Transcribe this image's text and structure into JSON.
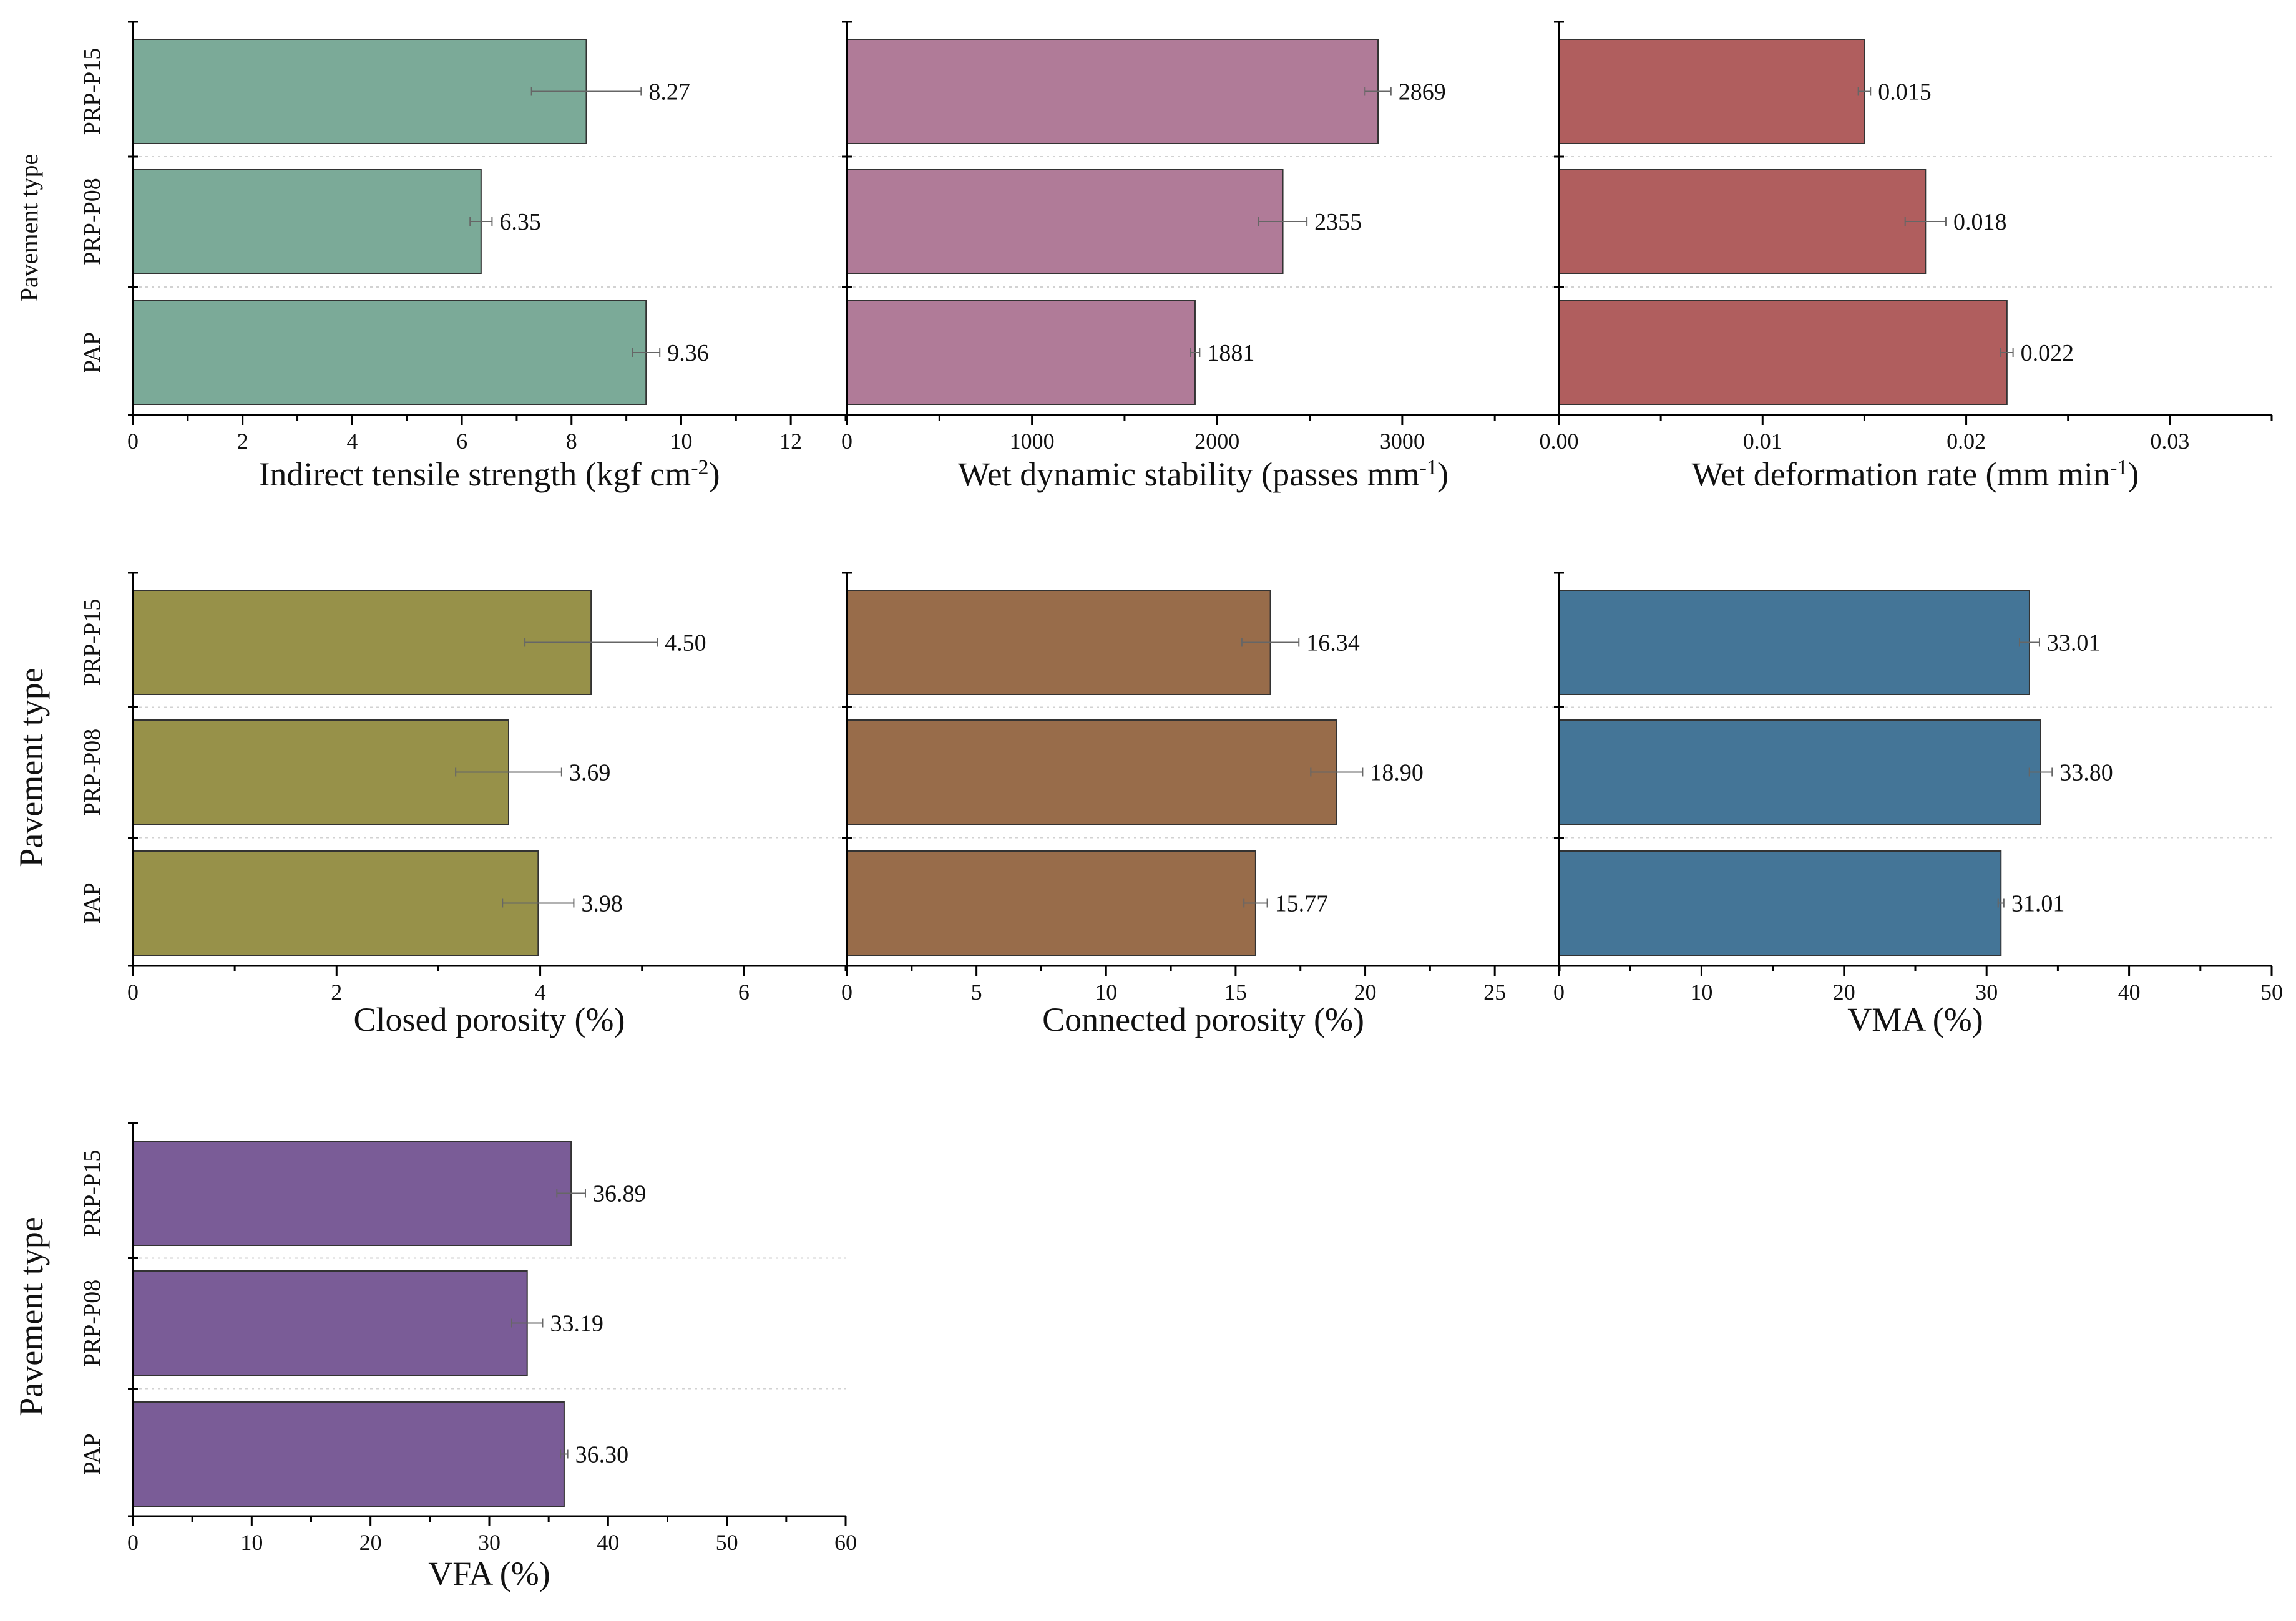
{
  "figure": {
    "y_axis_label": "Pavement type",
    "categories": [
      "PRP-P15",
      "PRP-P08",
      "PAP"
    ]
  },
  "chart_data": [
    {
      "type": "bar",
      "orientation": "horizontal",
      "title": "",
      "xlabel": "Indirect tensile strength (kgf cm",
      "xlabel_sup": "-2",
      "xlabel_suffix": ")",
      "ylabel": "Pavement type",
      "categories": [
        "PRP-P15",
        "PRP-P08",
        "PAP"
      ],
      "values": [
        8.27,
        6.35,
        9.36
      ],
      "errors": [
        1.0,
        0.2,
        0.25
      ],
      "value_labels": [
        "8.27",
        "6.35",
        "9.36"
      ],
      "xlim": [
        0,
        13
      ],
      "xticks": [
        0,
        2,
        4,
        6,
        8,
        10,
        12
      ],
      "xtick_labels": [
        "0",
        "2",
        "4",
        "6",
        "8",
        "10",
        "12"
      ],
      "color": "#7baa98"
    },
    {
      "type": "bar",
      "orientation": "horizontal",
      "title": "",
      "xlabel": "Wet dynamic stability (passes mm",
      "xlabel_sup": "-1",
      "xlabel_suffix": ")",
      "ylabel": "",
      "categories": [
        "PRP-P15",
        "PRP-P08",
        "PAP"
      ],
      "values": [
        2869,
        2355,
        1881
      ],
      "errors": [
        70,
        130,
        25
      ],
      "value_labels": [
        "2869",
        "2355",
        "1881"
      ],
      "xlim": [
        0,
        3850
      ],
      "xticks": [
        0,
        1000,
        2000,
        3000
      ],
      "xtick_labels": [
        "0",
        "1000",
        "2000",
        "3000"
      ],
      "color": "#b07b98"
    },
    {
      "type": "bar",
      "orientation": "horizontal",
      "title": "",
      "xlabel": "Wet deformation rate (mm min",
      "xlabel_sup": "-1",
      "xlabel_suffix": ")",
      "ylabel": "",
      "categories": [
        "PRP-P15",
        "PRP-P08",
        "PAP"
      ],
      "values": [
        0.015,
        0.018,
        0.022
      ],
      "errors": [
        0.0003,
        0.001,
        0.0003
      ],
      "value_labels": [
        "0.015",
        "0.018",
        "0.022"
      ],
      "xlim": [
        0,
        0.035
      ],
      "xticks": [
        0,
        0.01,
        0.02,
        0.03
      ],
      "xtick_labels": [
        "0.00",
        "0.01",
        "0.02",
        "0.03"
      ],
      "color": "#b05e5e"
    },
    {
      "type": "bar",
      "orientation": "horizontal",
      "title": "",
      "xlabel": "Closed porosity (%)",
      "xlabel_sup": "",
      "xlabel_suffix": "",
      "ylabel": "Pavement type",
      "categories": [
        "PRP-P15",
        "PRP-P08",
        "PAP"
      ],
      "values": [
        4.5,
        3.69,
        3.98
      ],
      "errors": [
        0.65,
        0.52,
        0.35
      ],
      "value_labels": [
        "4.50",
        "3.69",
        "3.98"
      ],
      "xlim": [
        0,
        7
      ],
      "xticks": [
        0,
        2,
        4,
        6
      ],
      "xtick_labels": [
        "0",
        "2",
        "4",
        "6"
      ],
      "color": "#979149"
    },
    {
      "type": "bar",
      "orientation": "horizontal",
      "title": "",
      "xlabel": "Connected porosity (%)",
      "xlabel_sup": "",
      "xlabel_suffix": "",
      "ylabel": "",
      "categories": [
        "PRP-P15",
        "PRP-P08",
        "PAP"
      ],
      "values": [
        16.34,
        18.9,
        15.77
      ],
      "errors": [
        1.1,
        1.0,
        0.45
      ],
      "value_labels": [
        "16.34",
        "18.90",
        "15.77"
      ],
      "xlim": [
        0,
        27.5
      ],
      "xticks": [
        0,
        5,
        10,
        15,
        20,
        25
      ],
      "xtick_labels": [
        "0",
        "5",
        "10",
        "15",
        "20",
        "25"
      ],
      "color": "#986c4a"
    },
    {
      "type": "bar",
      "orientation": "horizontal",
      "title": "",
      "xlabel": "VMA (%)",
      "xlabel_sup": "",
      "xlabel_suffix": "",
      "ylabel": "",
      "categories": [
        "PRP-P15",
        "PRP-P08",
        "PAP"
      ],
      "values": [
        33.01,
        33.8,
        31.01
      ],
      "errors": [
        0.7,
        0.8,
        0.2
      ],
      "value_labels": [
        "33.01",
        "33.80",
        "31.01"
      ],
      "xlim": [
        0,
        50
      ],
      "xticks": [
        0,
        10,
        20,
        30,
        40,
        50
      ],
      "xtick_labels": [
        "0",
        "10",
        "20",
        "30",
        "40",
        "50"
      ],
      "color": "#447597"
    },
    {
      "type": "bar",
      "orientation": "horizontal",
      "title": "",
      "xlabel": "VFA (%)",
      "xlabel_sup": "",
      "xlabel_suffix": "",
      "ylabel": "Pavement type",
      "categories": [
        "PRP-P15",
        "PRP-P08",
        "PAP"
      ],
      "values": [
        36.89,
        33.19,
        36.3
      ],
      "errors": [
        1.2,
        1.3,
        0.3
      ],
      "value_labels": [
        "36.89",
        "33.19",
        "36.30"
      ],
      "xlim": [
        0,
        60
      ],
      "xticks": [
        0,
        10,
        20,
        30,
        40,
        50,
        60
      ],
      "xtick_labels": [
        "0",
        "10",
        "20",
        "30",
        "40",
        "50",
        "60"
      ],
      "color": "#7a5c97"
    }
  ]
}
